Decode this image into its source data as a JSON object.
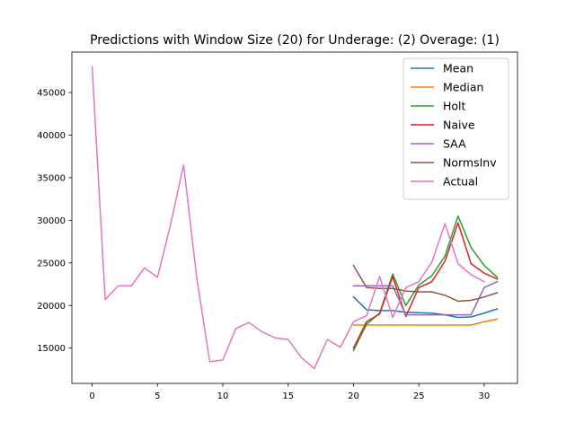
{
  "chart_data": {
    "type": "line",
    "title": "Predictions with Window Size (20) for Underage: (2) Overage: (1)",
    "xlabel": "",
    "ylabel": "",
    "xlim": [
      -1.55,
      32.55
    ],
    "ylim": [
      10850,
      49750
    ],
    "x_ticks": [
      0,
      5,
      10,
      15,
      20,
      25,
      30
    ],
    "y_ticks": [
      15000,
      20000,
      25000,
      30000,
      35000,
      40000,
      45000
    ],
    "x_tick_labels": [
      "0",
      "5",
      "10",
      "15",
      "20",
      "25",
      "30"
    ],
    "y_tick_labels": [
      "15000",
      "20000",
      "25000",
      "30000",
      "35000",
      "40000",
      "45000"
    ],
    "grid": false,
    "legend_position": "upper right",
    "series": [
      {
        "name": "Mean",
        "color": "#1f77b4",
        "x": [
          20,
          21,
          22,
          23,
          24,
          25,
          26,
          27,
          28,
          29,
          30,
          31
        ],
        "y": [
          21000,
          19500,
          19400,
          19400,
          19200,
          19150,
          19100,
          18900,
          18600,
          18650,
          19100,
          19600
        ]
      },
      {
        "name": "Median",
        "color": "#ff7f0e",
        "x": [
          20,
          21,
          22,
          23,
          24,
          25,
          26,
          27,
          28,
          29,
          30,
          31
        ],
        "y": [
          17700,
          17700,
          17700,
          17700,
          17700,
          17700,
          17700,
          17700,
          17700,
          17700,
          18100,
          18400
        ]
      },
      {
        "name": "Holt",
        "color": "#2ca02c",
        "x": [
          20,
          21,
          22,
          23,
          24,
          25,
          26,
          27,
          28,
          29,
          30,
          31
        ],
        "y": [
          14700,
          17800,
          19100,
          23700,
          20000,
          22400,
          23500,
          25800,
          30500,
          26800,
          24700,
          23300
        ]
      },
      {
        "name": "Naive",
        "color": "#d62728",
        "x": [
          20,
          21,
          22,
          23,
          24,
          25,
          26,
          27,
          28,
          29,
          30,
          31
        ],
        "y": [
          15000,
          18100,
          19000,
          23400,
          18700,
          22100,
          22800,
          25200,
          29700,
          24900,
          23800,
          23100
        ]
      },
      {
        "name": "SAA",
        "color": "#9467bd",
        "x": [
          20,
          21,
          22,
          23,
          24,
          25,
          26,
          27,
          28,
          29,
          30,
          31
        ],
        "y": [
          22300,
          22300,
          22300,
          22300,
          18900,
          18900,
          18900,
          18900,
          18900,
          18900,
          22100,
          22800
        ]
      },
      {
        "name": "NormsInv",
        "color": "#8c564b",
        "x": [
          20,
          21,
          22,
          23,
          24,
          25,
          26,
          27,
          28,
          29,
          30,
          31
        ],
        "y": [
          24700,
          22100,
          22000,
          22000,
          21700,
          21600,
          21600,
          21200,
          20500,
          20600,
          21000,
          21500
        ]
      },
      {
        "name": "Actual",
        "color": "#e377c2",
        "x": [
          0,
          1,
          2,
          3,
          4,
          5,
          6,
          7,
          8,
          9,
          10,
          11,
          12,
          13,
          14,
          15,
          16,
          17,
          18,
          19,
          20,
          21,
          22,
          23,
          24,
          25,
          26,
          27,
          28,
          29,
          30
        ],
        "y": [
          48000,
          20700,
          22300,
          22300,
          24400,
          23300,
          29500,
          36500,
          23300,
          13400,
          13600,
          17300,
          18000,
          16900,
          16200,
          16000,
          13900,
          12600,
          16000,
          15100,
          18100,
          18800,
          23400,
          18600,
          22100,
          22800,
          25100,
          29600,
          24900,
          23600,
          22800
        ]
      }
    ]
  }
}
